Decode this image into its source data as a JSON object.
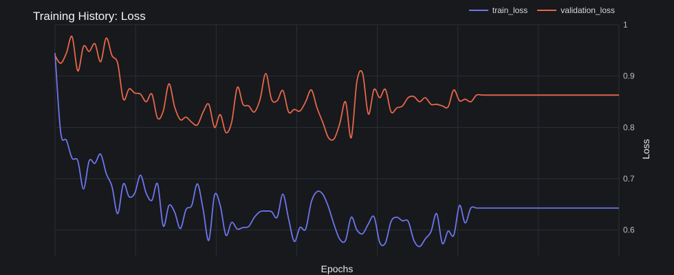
{
  "chart_data": {
    "type": "line",
    "title": "Training History: Loss",
    "xlabel": "Epochs",
    "ylabel": "Loss",
    "ylim": [
      0.55,
      1.0
    ],
    "y_ticks": [
      "0.6",
      "0.7",
      "0.8",
      "0.9",
      "1"
    ],
    "y_tick_values": [
      0.6,
      0.7,
      0.8,
      0.9,
      1.0
    ],
    "y_axis_side": "right",
    "grid": true,
    "legend_position": "top-right",
    "x": [
      1,
      2,
      3,
      4,
      5,
      6,
      7,
      8,
      9,
      10,
      11,
      12,
      13,
      14,
      15,
      16,
      17,
      18,
      19,
      20,
      21,
      22,
      23,
      24,
      25,
      26,
      27,
      28,
      29,
      30,
      31,
      32,
      33,
      34,
      35,
      36,
      37,
      38,
      39,
      40,
      41,
      42,
      43,
      44,
      45,
      46,
      47,
      48,
      49,
      50,
      51,
      52,
      53,
      54,
      55,
      56,
      57,
      58,
      59,
      60,
      61,
      62,
      63,
      64,
      65,
      66,
      67,
      68,
      69,
      70,
      71,
      72,
      73,
      74,
      75,
      76,
      77,
      78,
      79,
      80,
      81,
      82,
      83,
      84,
      85,
      86,
      87,
      88,
      89,
      90,
      91,
      92,
      93,
      94,
      95,
      96,
      97,
      98,
      99,
      100
    ],
    "series": [
      {
        "name": "train_loss",
        "color": "#6e76f0",
        "values": [
          0.945,
          0.79,
          0.775,
          0.74,
          0.735,
          0.68,
          0.735,
          0.73,
          0.748,
          0.71,
          0.685,
          0.632,
          0.69,
          0.665,
          0.672,
          0.707,
          0.672,
          0.658,
          0.69,
          0.608,
          0.648,
          0.635,
          0.603,
          0.64,
          0.648,
          0.69,
          0.64,
          0.58,
          0.668,
          0.648,
          0.59,
          0.615,
          0.602,
          0.605,
          0.607,
          0.625,
          0.636,
          0.637,
          0.636,
          0.625,
          0.67,
          0.622,
          0.578,
          0.605,
          0.602,
          0.655,
          0.675,
          0.67,
          0.645,
          0.61,
          0.582,
          0.58,
          0.625,
          0.6,
          0.593,
          0.612,
          0.626,
          0.576,
          0.575,
          0.617,
          0.625,
          0.618,
          0.617,
          0.58,
          0.568,
          0.583,
          0.597,
          0.632,
          0.574,
          0.598,
          0.59,
          0.648,
          0.614,
          0.643,
          0.643,
          0.643,
          0.643,
          0.643,
          0.643,
          0.643,
          0.643,
          0.643,
          0.643,
          0.643,
          0.643,
          0.643,
          0.643,
          0.643,
          0.643,
          0.643,
          0.643,
          0.643,
          0.643,
          0.643,
          0.643,
          0.643,
          0.643,
          0.643,
          0.643,
          0.643
        ]
      },
      {
        "name": "validation_loss",
        "color": "#e8674a",
        "values": [
          0.94,
          0.925,
          0.945,
          0.977,
          0.91,
          0.958,
          0.948,
          0.963,
          0.928,
          0.974,
          0.94,
          0.925,
          0.855,
          0.875,
          0.867,
          0.865,
          0.85,
          0.865,
          0.818,
          0.832,
          0.885,
          0.84,
          0.815,
          0.82,
          0.81,
          0.805,
          0.83,
          0.845,
          0.8,
          0.825,
          0.79,
          0.81,
          0.878,
          0.845,
          0.842,
          0.83,
          0.855,
          0.905,
          0.855,
          0.852,
          0.872,
          0.83,
          0.835,
          0.832,
          0.85,
          0.873,
          0.838,
          0.81,
          0.78,
          0.778,
          0.808,
          0.85,
          0.78,
          0.89,
          0.905,
          0.826,
          0.874,
          0.858,
          0.874,
          0.83,
          0.838,
          0.842,
          0.858,
          0.86,
          0.85,
          0.858,
          0.845,
          0.845,
          0.842,
          0.84,
          0.873,
          0.852,
          0.855,
          0.85,
          0.863,
          0.863,
          0.863,
          0.863,
          0.863,
          0.863,
          0.863,
          0.863,
          0.863,
          0.863,
          0.863,
          0.863,
          0.863,
          0.863,
          0.863,
          0.863,
          0.863,
          0.863,
          0.863,
          0.863,
          0.863,
          0.863,
          0.863,
          0.863,
          0.863,
          0.863
        ]
      }
    ]
  }
}
